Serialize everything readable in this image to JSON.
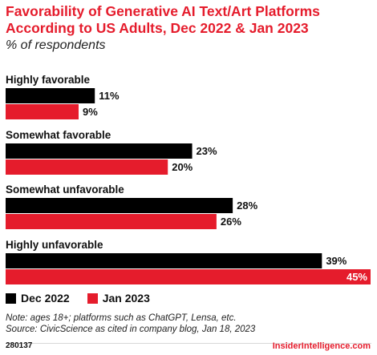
{
  "header": {
    "title": "Favorability of Generative AI Text/Art Platforms According to US Adults, Dec 2022 & Jan 2023",
    "subtitle": "% of respondents"
  },
  "chart_data": {
    "type": "bar",
    "orientation": "horizontal",
    "categories": [
      "Highly favorable",
      "Somewhat favorable",
      "Somewhat unfavorable",
      "Highly unfavorable"
    ],
    "series": [
      {
        "name": "Dec 2022",
        "values": [
          11,
          23,
          28,
          39
        ],
        "labels": [
          "11%",
          "23%",
          "28%",
          "39%"
        ],
        "color": "#000000"
      },
      {
        "name": "Jan 2023",
        "values": [
          9,
          20,
          26,
          45
        ],
        "labels": [
          "9%",
          "20%",
          "26%",
          "45%"
        ],
        "color": "#e51c2c"
      }
    ],
    "xlim": [
      0,
      45
    ],
    "grid": false,
    "legend_position": "bottom-left"
  },
  "legend": [
    {
      "label": "Dec 2022",
      "color": "#000000"
    },
    {
      "label": "Jan 2023",
      "color": "#e51c2c"
    }
  ],
  "notes": {
    "note": "Note: ages 18+; platforms such as ChatGPT, Lensa, etc.",
    "source": "Source: CivicScience as cited in company blog, Jan 18, 2023"
  },
  "footer": {
    "id": "280137",
    "brand": "InsiderIntelligence.com"
  },
  "colors": {
    "accent": "#e51c2c",
    "primary": "#000000"
  }
}
